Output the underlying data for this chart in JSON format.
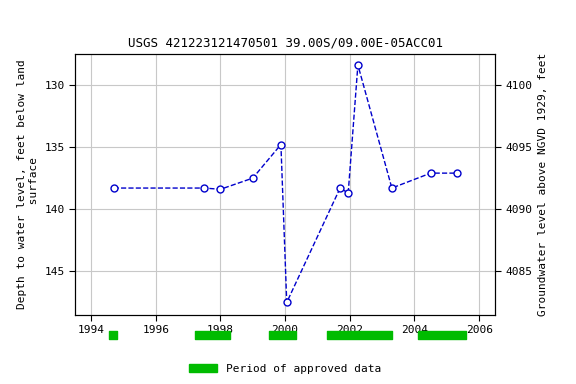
{
  "title": "USGS 421223121470501 39.00S/09.00E-05ACC01",
  "ylabel_left": "Depth to water level, feet below land\n surface",
  "ylabel_right": "Groundwater level above NGVD 1929, feet",
  "xlim": [
    1993.5,
    2006.5
  ],
  "ylim_left": [
    127.5,
    148.5
  ],
  "ylim_right": [
    4081.5,
    4102.5
  ],
  "yticks_left": [
    130,
    135,
    140,
    145
  ],
  "yticks_right": [
    4085,
    4090,
    4095,
    4100
  ],
  "xticks": [
    1994,
    1996,
    1998,
    2000,
    2002,
    2004,
    2006
  ],
  "data_x": [
    1994.7,
    1997.5,
    1998.0,
    1999.0,
    1999.87,
    2000.05,
    2001.7,
    2001.95,
    2002.25,
    2003.3,
    2004.5,
    2005.3
  ],
  "data_y": [
    138.3,
    138.3,
    138.4,
    137.5,
    134.8,
    147.5,
    138.3,
    138.7,
    128.4,
    138.3,
    137.1,
    137.1
  ],
  "line_color": "#0000cc",
  "marker_color": "#0000cc",
  "marker_face": "#ffffff",
  "marker_size": 5,
  "line_style": "--",
  "grid_color": "#c8c8c8",
  "background_color": "#ffffff",
  "approved_periods": [
    [
      1994.55,
      1994.8
    ],
    [
      1997.2,
      1998.3
    ],
    [
      1999.5,
      2000.35
    ],
    [
      2001.3,
      2003.3
    ],
    [
      2004.1,
      2005.6
    ]
  ],
  "approved_color": "#00bb00",
  "legend_label": "Period of approved data"
}
